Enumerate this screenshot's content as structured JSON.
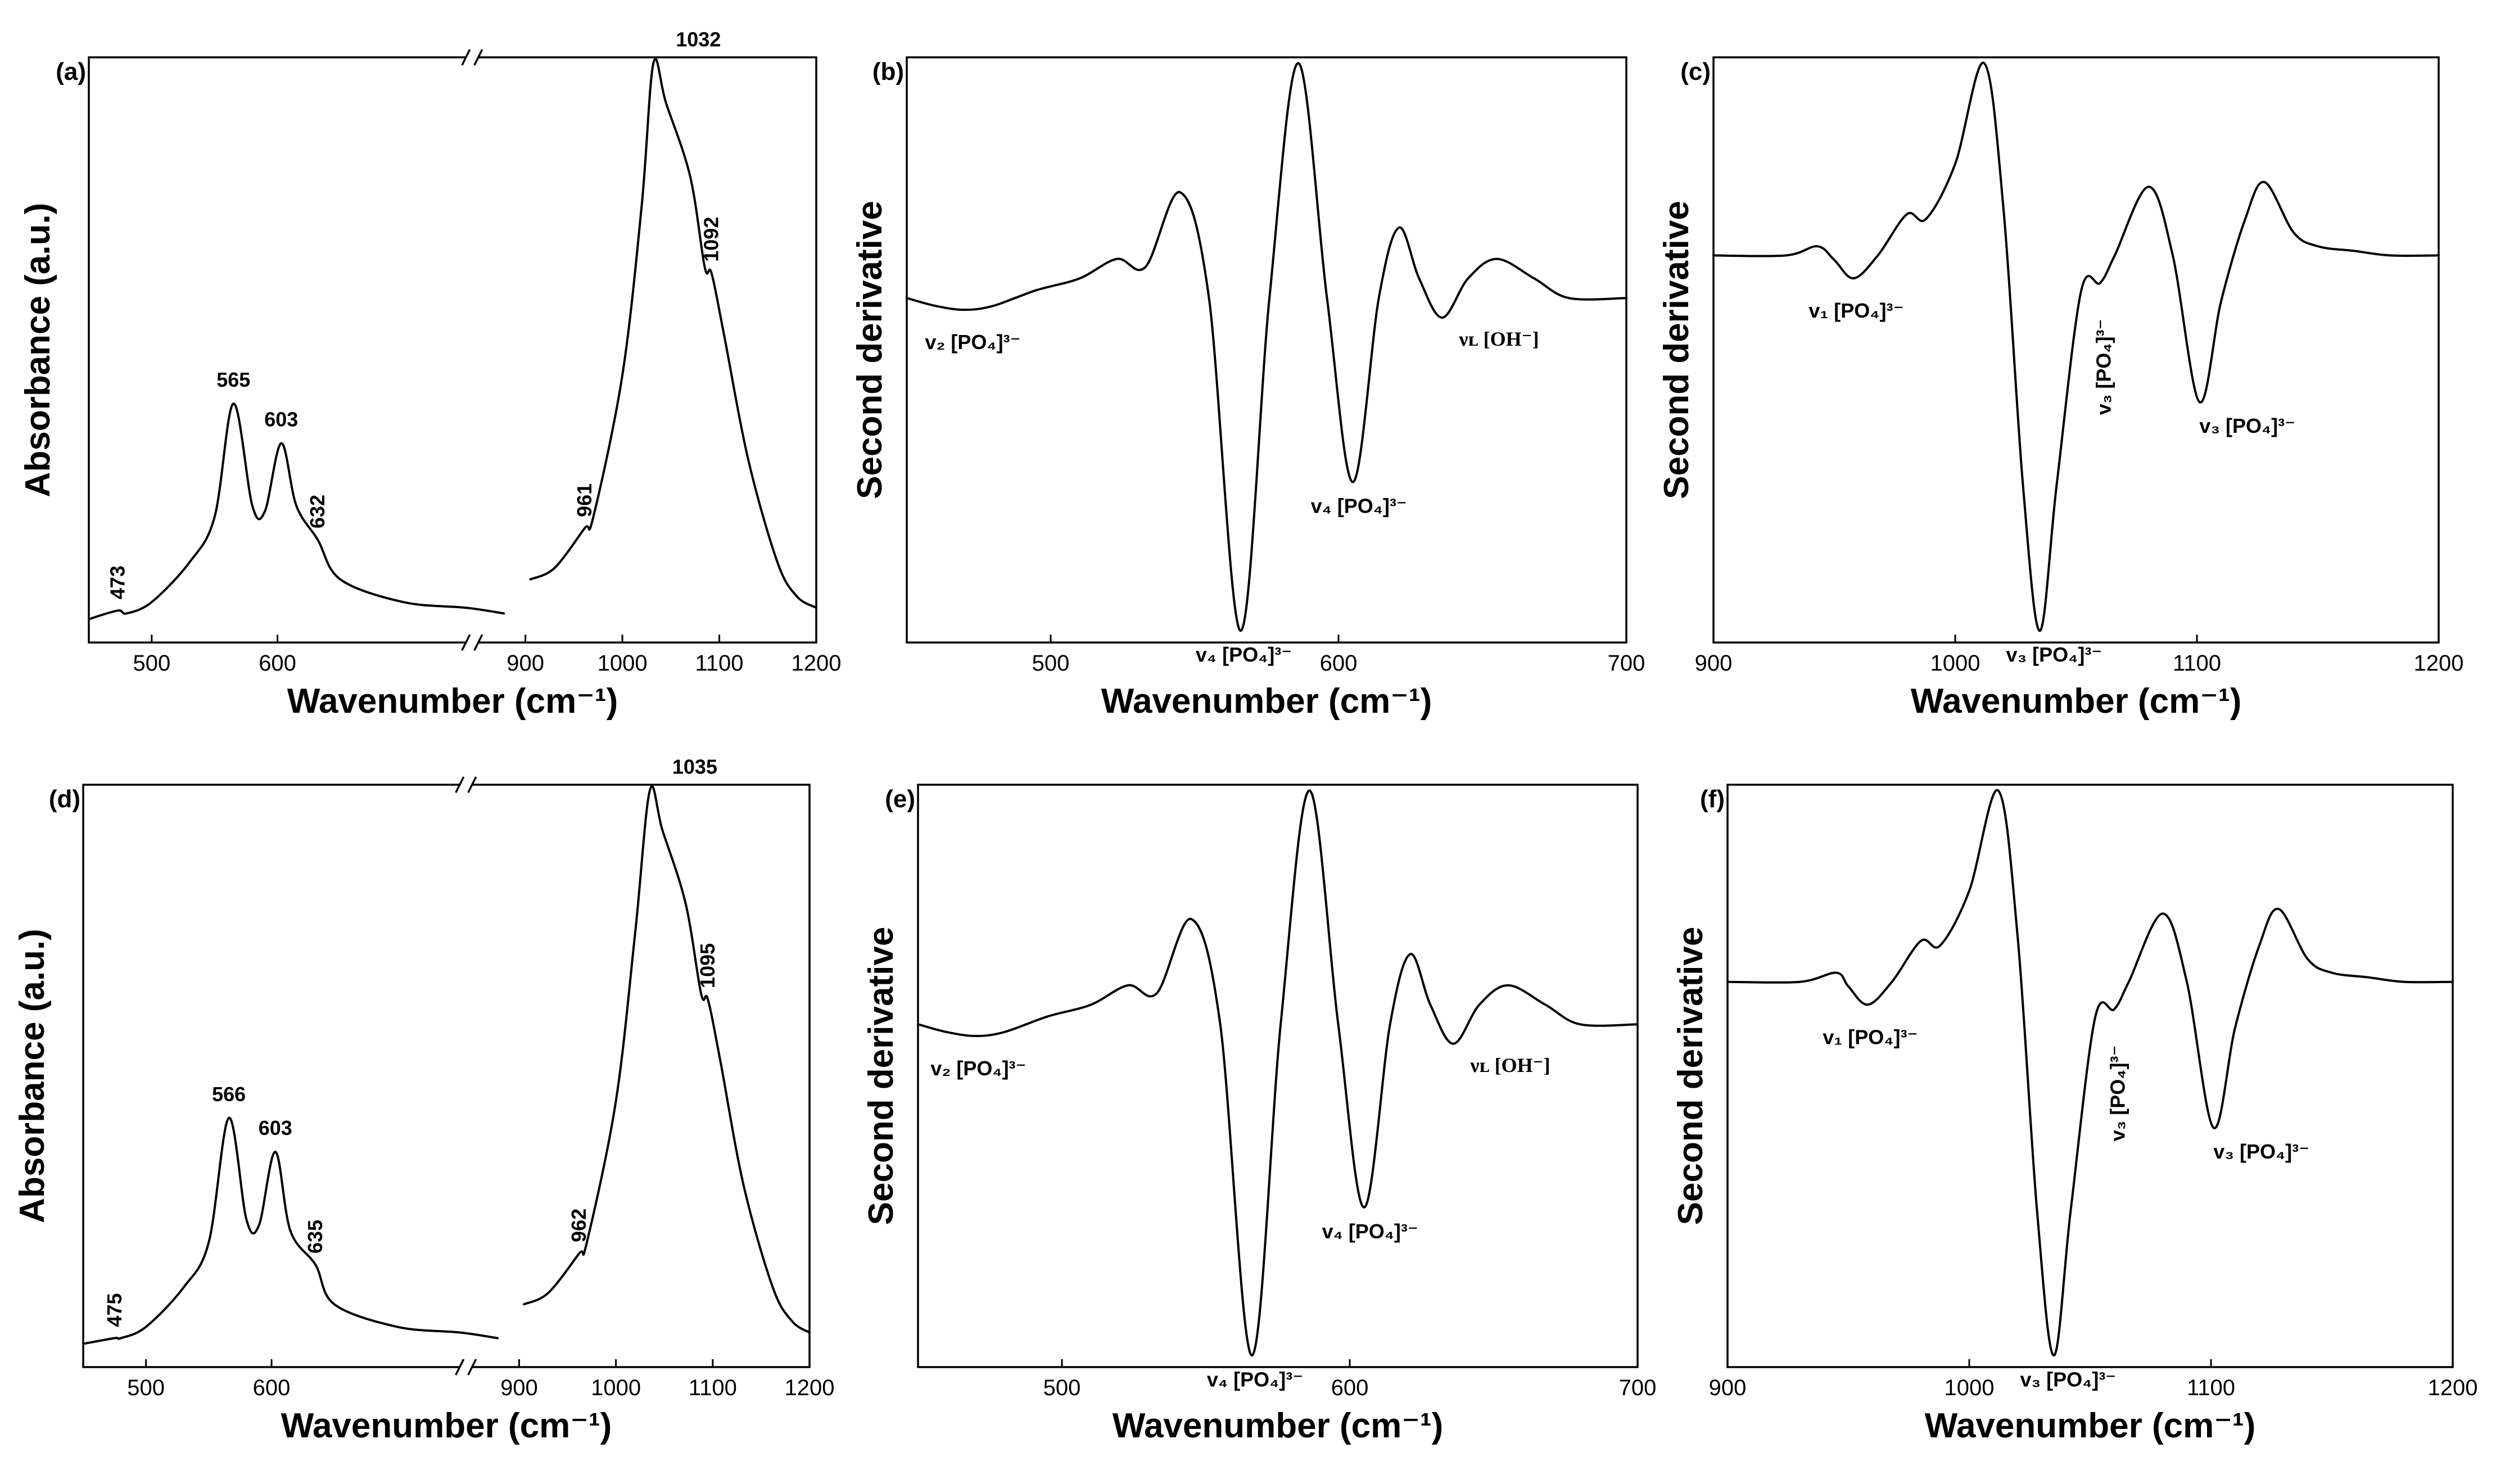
{
  "chart_data": [
    {
      "panel": "(a)",
      "type": "line",
      "broken_x_axis": true,
      "xlabel": "Wavenumber",
      "xunit": "(cm⁻¹)",
      "ylabel": "Absorbance (a.u.)",
      "xlim": [
        450,
        1200
      ],
      "break_at": 900,
      "xticks": [
        500,
        600,
        900,
        1000,
        1100,
        1200
      ],
      "series": [
        {
          "name": "absorbance",
          "points": [
            [
              450,
              0.02
            ],
            [
              473,
              0.035
            ],
            [
              480,
              0.03
            ],
            [
              500,
              0.05
            ],
            [
              530,
              0.12
            ],
            [
              550,
              0.2
            ],
            [
              565,
              0.4
            ],
            [
              580,
              0.22
            ],
            [
              590,
              0.21
            ],
            [
              603,
              0.33
            ],
            [
              615,
              0.22
            ],
            [
              632,
              0.16
            ],
            [
              650,
              0.09
            ],
            [
              700,
              0.05
            ],
            [
              750,
              0.04
            ],
            [
              780,
              0.03
            ],
            [
              905,
              0.09
            ],
            [
              930,
              0.11
            ],
            [
              961,
              0.18
            ],
            [
              970,
              0.2
            ],
            [
              1000,
              0.45
            ],
            [
              1020,
              0.75
            ],
            [
              1032,
              1.0
            ],
            [
              1045,
              0.93
            ],
            [
              1070,
              0.8
            ],
            [
              1085,
              0.64
            ],
            [
              1092,
              0.63
            ],
            [
              1105,
              0.52
            ],
            [
              1130,
              0.3
            ],
            [
              1160,
              0.12
            ],
            [
              1180,
              0.06
            ],
            [
              1200,
              0.04
            ]
          ]
        }
      ],
      "peak_labels": [
        {
          "x": 473,
          "text": "473"
        },
        {
          "x": 565,
          "text": "565"
        },
        {
          "x": 603,
          "text": "603"
        },
        {
          "x": 632,
          "text": "632"
        },
        {
          "x": 961,
          "text": "961"
        },
        {
          "x": 1032,
          "text": "1032"
        },
        {
          "x": 1092,
          "text": "1092"
        }
      ]
    },
    {
      "panel": "(b)",
      "type": "line",
      "xlabel": "Wavenumber",
      "xunit": "(cm⁻¹)",
      "ylabel": "Second derivative",
      "xlim": [
        450,
        700
      ],
      "xticks": [
        500,
        600,
        700
      ],
      "series": [
        {
          "name": "second derivative",
          "points": [
            [
              450,
              0
            ],
            [
              460,
              -0.02
            ],
            [
              470,
              -0.03
            ],
            [
              480,
              -0.02
            ],
            [
              495,
              0.02
            ],
            [
              510,
              0.05
            ],
            [
              523,
              0.1
            ],
            [
              533,
              0.08
            ],
            [
              545,
              0.27
            ],
            [
              555,
              0.0
            ],
            [
              566,
              -0.85
            ],
            [
              576,
              0.0
            ],
            [
              586,
              0.6
            ],
            [
              596,
              0.0
            ],
            [
              605,
              -0.47
            ],
            [
              614,
              0.0
            ],
            [
              621,
              0.18
            ],
            [
              628,
              0.05
            ],
            [
              636,
              -0.05
            ],
            [
              645,
              0.05
            ],
            [
              655,
              0.1
            ],
            [
              668,
              0.05
            ],
            [
              680,
              0.0
            ],
            [
              700,
              0.0
            ]
          ]
        }
      ],
      "annotations": [
        {
          "x": 470,
          "y": -0.03,
          "text": "v₂ [PO₄]³⁻"
        },
        {
          "x": 566,
          "y": -0.85,
          "text": "v₄ [PO₄]³⁻"
        },
        {
          "x": 605,
          "y": -0.47,
          "text": "v₄ [PO₄]³⁻"
        },
        {
          "x": 636,
          "y": -0.05,
          "text": "νʟ [OH⁻]"
        }
      ]
    },
    {
      "panel": "(c)",
      "type": "line",
      "xlabel": "Wavenumber",
      "xunit": "(cm⁻¹)",
      "ylabel": "Second derivative",
      "xlim": [
        900,
        1200
      ],
      "xticks": [
        900,
        1000,
        1100,
        1200
      ],
      "series": [
        {
          "name": "second derivative",
          "points": [
            [
              900,
              0
            ],
            [
              930,
              0
            ],
            [
              943,
              0.02
            ],
            [
              950,
              -0.01
            ],
            [
              958,
              -0.05
            ],
            [
              968,
              0.0
            ],
            [
              980,
              0.09
            ],
            [
              988,
              0.08
            ],
            [
              1000,
              0.2
            ],
            [
              1012,
              0.42
            ],
            [
              1020,
              0.1
            ],
            [
              1028,
              -0.5
            ],
            [
              1035,
              -0.82
            ],
            [
              1042,
              -0.5
            ],
            [
              1052,
              -0.08
            ],
            [
              1060,
              -0.06
            ],
            [
              1066,
              0.0
            ],
            [
              1080,
              0.15
            ],
            [
              1090,
              0.0
            ],
            [
              1101,
              -0.32
            ],
            [
              1110,
              -0.1
            ],
            [
              1120,
              0.08
            ],
            [
              1128,
              0.16
            ],
            [
              1140,
              0.05
            ],
            [
              1150,
              0.02
            ],
            [
              1165,
              0.01
            ],
            [
              1180,
              0.0
            ],
            [
              1200,
              0.0
            ]
          ]
        }
      ],
      "annotations": [
        {
          "x": 958,
          "y": -0.05,
          "text": "v₁ [PO₄]³⁻"
        },
        {
          "x": 1035,
          "y": -0.82,
          "text": "v₃ [PO₄]³⁻"
        },
        {
          "x": 1062,
          "y": -0.06,
          "text": "v₃ [PO₄]³⁻"
        },
        {
          "x": 1101,
          "y": -0.32,
          "text": "v₃ [PO₄]³⁻"
        }
      ]
    },
    {
      "panel": "(d)",
      "type": "line",
      "broken_x_axis": true,
      "xlabel": "Wavenumber",
      "xunit": "(cm⁻¹)",
      "ylabel": "Absorbance (a.u.)",
      "xlim": [
        450,
        1200
      ],
      "break_at": 900,
      "xticks": [
        500,
        600,
        900,
        1000,
        1100,
        1200
      ],
      "series": [
        {
          "name": "absorbance",
          "points": [
            [
              450,
              0.02
            ],
            [
              475,
              0.03
            ],
            [
              480,
              0.03
            ],
            [
              500,
              0.05
            ],
            [
              530,
              0.12
            ],
            [
              550,
              0.2
            ],
            [
              566,
              0.42
            ],
            [
              580,
              0.24
            ],
            [
              590,
              0.23
            ],
            [
              603,
              0.36
            ],
            [
              615,
              0.22
            ],
            [
              635,
              0.16
            ],
            [
              650,
              0.09
            ],
            [
              700,
              0.05
            ],
            [
              750,
              0.04
            ],
            [
              780,
              0.03
            ],
            [
              905,
              0.09
            ],
            [
              930,
              0.11
            ],
            [
              962,
              0.18
            ],
            [
              970,
              0.2
            ],
            [
              1000,
              0.45
            ],
            [
              1020,
              0.75
            ],
            [
              1035,
              1.0
            ],
            [
              1048,
              0.93
            ],
            [
              1072,
              0.8
            ],
            [
              1088,
              0.64
            ],
            [
              1095,
              0.63
            ],
            [
              1108,
              0.52
            ],
            [
              1132,
              0.3
            ],
            [
              1162,
              0.12
            ],
            [
              1182,
              0.06
            ],
            [
              1200,
              0.04
            ]
          ]
        }
      ],
      "peak_labels": [
        {
          "x": 475,
          "text": "475"
        },
        {
          "x": 566,
          "text": "566"
        },
        {
          "x": 603,
          "text": "603"
        },
        {
          "x": 635,
          "text": "635"
        },
        {
          "x": 962,
          "text": "962"
        },
        {
          "x": 1035,
          "text": "1035"
        },
        {
          "x": 1095,
          "text": "1095"
        }
      ]
    },
    {
      "panel": "(e)",
      "type": "line",
      "xlabel": "Wavenumber",
      "xunit": "(cm⁻¹)",
      "ylabel": "Second derivative",
      "xlim": [
        450,
        700
      ],
      "xticks": [
        500,
        600,
        700
      ],
      "series": [
        {
          "name": "second derivative",
          "points": [
            [
              450,
              0
            ],
            [
              460,
              -0.02
            ],
            [
              470,
              -0.03
            ],
            [
              480,
              -0.02
            ],
            [
              495,
              0.02
            ],
            [
              510,
              0.05
            ],
            [
              523,
              0.1
            ],
            [
              533,
              0.08
            ],
            [
              545,
              0.27
            ],
            [
              555,
              0.0
            ],
            [
              566,
              -0.85
            ],
            [
              576,
              0.0
            ],
            [
              586,
              0.6
            ],
            [
              596,
              0.0
            ],
            [
              605,
              -0.47
            ],
            [
              614,
              0.0
            ],
            [
              621,
              0.18
            ],
            [
              628,
              0.05
            ],
            [
              636,
              -0.05
            ],
            [
              645,
              0.05
            ],
            [
              655,
              0.1
            ],
            [
              668,
              0.05
            ],
            [
              680,
              0.0
            ],
            [
              700,
              0.0
            ]
          ]
        }
      ],
      "annotations": [
        {
          "x": 470,
          "y": -0.03,
          "text": "v₂ [PO₄]³⁻"
        },
        {
          "x": 566,
          "y": -0.85,
          "text": "v₄ [PO₄]³⁻"
        },
        {
          "x": 605,
          "y": -0.47,
          "text": "v₄ [PO₄]³⁻"
        },
        {
          "x": 636,
          "y": -0.05,
          "text": "νʟ [OH⁻]"
        }
      ]
    },
    {
      "panel": "(f)",
      "type": "line",
      "xlabel": "Wavenumber",
      "xunit": "(cm⁻¹)",
      "ylabel": "Second derivative",
      "xlim": [
        900,
        1200
      ],
      "xticks": [
        900,
        1000,
        1100,
        1200
      ],
      "series": [
        {
          "name": "second derivative",
          "points": [
            [
              900,
              0
            ],
            [
              930,
              0
            ],
            [
              945,
              0.02
            ],
            [
              950,
              -0.01
            ],
            [
              958,
              -0.05
            ],
            [
              968,
              0.0
            ],
            [
              980,
              0.09
            ],
            [
              988,
              0.08
            ],
            [
              1000,
              0.2
            ],
            [
              1012,
              0.42
            ],
            [
              1020,
              0.1
            ],
            [
              1028,
              -0.5
            ],
            [
              1035,
              -0.82
            ],
            [
              1042,
              -0.5
            ],
            [
              1052,
              -0.08
            ],
            [
              1060,
              -0.06
            ],
            [
              1066,
              0.0
            ],
            [
              1080,
              0.15
            ],
            [
              1090,
              0.0
            ],
            [
              1101,
              -0.32
            ],
            [
              1110,
              -0.1
            ],
            [
              1120,
              0.08
            ],
            [
              1128,
              0.16
            ],
            [
              1140,
              0.05
            ],
            [
              1150,
              0.02
            ],
            [
              1165,
              0.01
            ],
            [
              1180,
              0.0
            ],
            [
              1200,
              0.0
            ]
          ]
        }
      ],
      "annotations": [
        {
          "x": 958,
          "y": -0.05,
          "text": "v₁ [PO₄]³⁻"
        },
        {
          "x": 1035,
          "y": -0.82,
          "text": "v₃ [PO₄]³⁻"
        },
        {
          "x": 1062,
          "y": -0.06,
          "text": "v₃ [PO₄]³⁻"
        },
        {
          "x": 1101,
          "y": -0.32,
          "text": "v₃ [PO₄]³⁻"
        }
      ]
    }
  ]
}
